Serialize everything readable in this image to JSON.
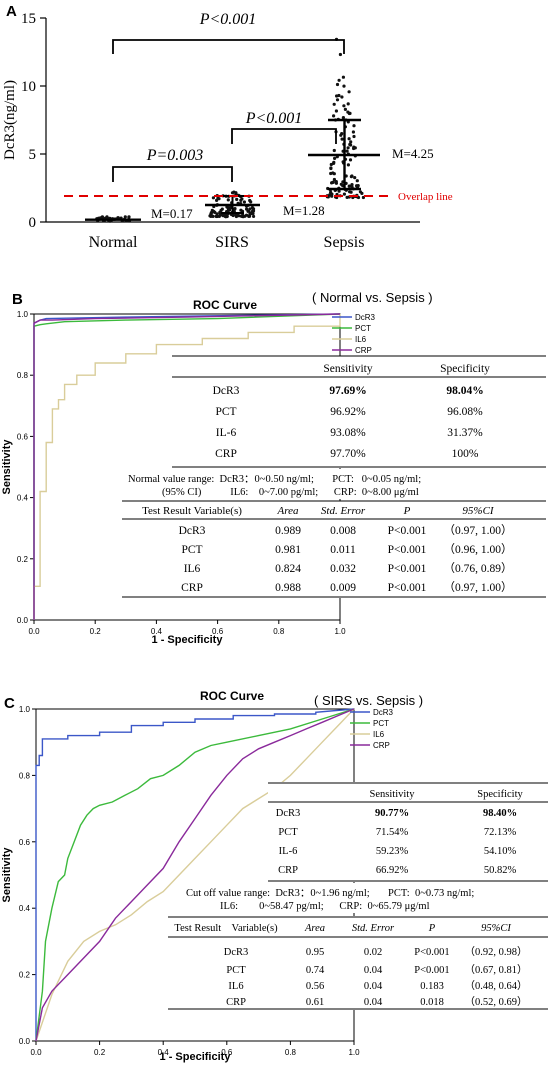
{
  "colors": {
    "DcR3": "#3b57c8",
    "PCT": "#3cba3c",
    "IL6": "#d9cd9a",
    "CRP": "#8a2a9b",
    "overlap": "#e00000"
  },
  "panelA": {
    "label": "A",
    "ylabel": "DcR3(ng/ml)",
    "yticks": [
      "0",
      "5",
      "10",
      "15"
    ],
    "categories": [
      "Normal",
      "SIRS",
      "Sepsis"
    ],
    "medians": [
      "M=0.17",
      "M=1.28",
      "M=4.25"
    ],
    "p_top": "P<0.001",
    "p_mid": "P<0.001",
    "p_low": "P=0.003",
    "overlap_label": "Overlap line"
  },
  "panelB": {
    "label": "B",
    "title": "ROC Curve",
    "subtitle": "( Normal vs. Sepsis )",
    "ylabel": "Sensitivity",
    "xlabel": "1 - Specificity",
    "ticks": [
      "0.0",
      "0.2",
      "0.4",
      "0.6",
      "0.8",
      "1.0"
    ],
    "legend": [
      "DcR3",
      "PCT",
      "IL6",
      "CRP"
    ],
    "sens_table": {
      "headers": [
        "",
        "Sensitivity",
        "Specificity"
      ],
      "rows": [
        [
          "DcR3",
          "97.69%",
          "98.04%"
        ],
        [
          "PCT",
          "96.92%",
          "96.08%"
        ],
        [
          "IL-6",
          "93.08%",
          "31.37%"
        ],
        [
          "CRP",
          "97.70%",
          "100%"
        ]
      ]
    },
    "range1": "Normal value range:  DcR3：0~0.50 ng/ml;       PCT:   0~0.05 ng/ml;",
    "range2": "(95% CI)           IL6:    0~7.00 pg/ml;      CRP:  0~8.00 μg/ml",
    "stat_table": {
      "headers": [
        "Test Result Variable(s)",
        "Area",
        "Std. Error",
        "P",
        "95%CI"
      ],
      "rows": [
        [
          "DcR3",
          "0.989",
          "0.008",
          "P<0.001",
          "（0.97, 1.00）"
        ],
        [
          "PCT",
          "0.981",
          "0.011",
          "P<0.001",
          "（0.96, 1.00）"
        ],
        [
          "IL6",
          "0.824",
          "0.032",
          "P<0.001",
          "（0.76, 0.89）"
        ],
        [
          "CRP",
          "0.988",
          "0.009",
          "P<0.001",
          "（0.97, 1.00）"
        ]
      ]
    }
  },
  "panelC": {
    "label": "C",
    "title": "ROC Curve",
    "subtitle": "( SIRS vs. Sepsis )",
    "ylabel": "Sensitivity",
    "xlabel": "1 - Specificity",
    "ticks": [
      "0.0",
      "0.2",
      "0.4",
      "0.6",
      "0.8",
      "1.0"
    ],
    "legend": [
      "DcR3",
      "PCT",
      "IL6",
      "CRP"
    ],
    "sens_table": {
      "headers": [
        "",
        "Sensitivity",
        "Specificity"
      ],
      "rows": [
        [
          "DcR3",
          "90.77%",
          "98.40%"
        ],
        [
          "PCT",
          "71.54%",
          "72.13%"
        ],
        [
          "IL-6",
          "59.23%",
          "54.10%"
        ],
        [
          "CRP",
          "66.92%",
          "50.82%"
        ]
      ]
    },
    "range1": "Cut off value range:  DcR3：0~1.96 ng/ml;       PCT:  0~0.73 ng/ml;",
    "range2": "IL6:        0~58.47 pg/ml;      CRP:  0~65.79 μg/ml",
    "stat_table": {
      "headers": [
        "Test Result    Variable(s)",
        "Area",
        "Std. Error",
        "P",
        "95%CI"
      ],
      "rows": [
        [
          "DcR3",
          "0.95",
          "0.02",
          "P<0.001",
          "（0.92, 0.98）"
        ],
        [
          "PCT",
          "0.74",
          "0.04",
          "P<0.001",
          "（0.67, 0.81）"
        ],
        [
          "IL6",
          "0.56",
          "0.04",
          "0.183",
          "（0.48, 0.64）"
        ],
        [
          "CRP",
          "0.61",
          "0.04",
          "0.018",
          "（0.52, 0.69）"
        ]
      ]
    }
  },
  "chart_data": [
    {
      "type": "scatter",
      "ylabel": "DcR3(ng/ml)",
      "ylim": [
        0,
        15
      ],
      "categories": [
        "Normal",
        "SIRS",
        "Sepsis"
      ],
      "medians": [
        0.17,
        1.28,
        4.25
      ],
      "iqr": [
        [
          0.1,
          0.3
        ],
        [
          0.7,
          1.9
        ],
        [
          2.5,
          7.6
        ]
      ],
      "overlap_line": 1.96,
      "annotations": [
        "P<0.001",
        "P<0.001",
        "P=0.003"
      ]
    },
    {
      "type": "line",
      "title": "ROC Curve",
      "xlabel": "1 - Specificity",
      "ylabel": "Sensitivity",
      "xlim": [
        0,
        1
      ],
      "ylim": [
        0,
        1
      ],
      "series": [
        {
          "name": "DcR3",
          "x": [
            0,
            0,
            0.02,
            0.04,
            0.3,
            1.0
          ],
          "y": [
            0,
            0.97,
            0.98,
            0.985,
            0.99,
            1.0
          ]
        },
        {
          "name": "PCT",
          "x": [
            0,
            0,
            0.02,
            0.04,
            0.1,
            0.3,
            0.6,
            1.0
          ],
          "y": [
            0,
            0.96,
            0.965,
            0.968,
            0.975,
            0.98,
            0.985,
            1.0
          ]
        },
        {
          "name": "IL6",
          "x": [
            0,
            0,
            0.02,
            0.02,
            0.04,
            0.04,
            0.06,
            0.06,
            0.08,
            0.08,
            0.1,
            0.1,
            0.14,
            0.14,
            0.2,
            0.2,
            0.3,
            0.3,
            0.4,
            0.4,
            0.55,
            0.55,
            0.7,
            0.7,
            0.85,
            0.85,
            1.0,
            1.0
          ],
          "y": [
            0,
            0.11,
            0.11,
            0.42,
            0.42,
            0.58,
            0.58,
            0.69,
            0.69,
            0.72,
            0.72,
            0.77,
            0.77,
            0.8,
            0.8,
            0.84,
            0.84,
            0.87,
            0.87,
            0.9,
            0.9,
            0.92,
            0.92,
            0.94,
            0.94,
            0.96,
            0.96,
            1.0
          ]
        },
        {
          "name": "CRP",
          "x": [
            0,
            0,
            0.02,
            0.06,
            0.2,
            0.5,
            1.0
          ],
          "y": [
            0,
            0.97,
            0.98,
            0.98,
            0.985,
            0.99,
            1.0
          ]
        }
      ]
    },
    {
      "type": "line",
      "title": "ROC Curve",
      "xlabel": "1 - Specificity",
      "ylabel": "Sensitivity",
      "xlim": [
        0,
        1
      ],
      "ylim": [
        0,
        1
      ],
      "series": [
        {
          "name": "DcR3",
          "x": [
            0,
            0,
            0.01,
            0.01,
            0.02,
            0.02,
            0.1,
            0.1,
            0.2,
            0.2,
            0.3,
            0.3,
            0.4,
            0.4,
            0.5,
            0.5,
            0.62,
            0.62,
            0.75,
            0.75,
            0.88,
            0.88,
            1.0
          ],
          "y": [
            0,
            0.83,
            0.83,
            0.86,
            0.86,
            0.91,
            0.91,
            0.92,
            0.92,
            0.93,
            0.93,
            0.95,
            0.95,
            0.96,
            0.96,
            0.97,
            0.97,
            0.98,
            0.98,
            0.985,
            0.985,
            0.99,
            1.0
          ]
        },
        {
          "name": "PCT",
          "x": [
            0,
            0.02,
            0.03,
            0.05,
            0.07,
            0.09,
            0.1,
            0.12,
            0.14,
            0.16,
            0.18,
            0.2,
            0.24,
            0.28,
            0.32,
            0.36,
            0.4,
            0.45,
            0.5,
            0.55,
            0.6,
            0.7,
            0.8,
            0.9,
            1.0
          ],
          "y": [
            0,
            0.15,
            0.3,
            0.4,
            0.48,
            0.5,
            0.55,
            0.6,
            0.65,
            0.68,
            0.7,
            0.71,
            0.72,
            0.74,
            0.76,
            0.79,
            0.8,
            0.83,
            0.87,
            0.89,
            0.9,
            0.92,
            0.94,
            0.97,
            1.0
          ]
        },
        {
          "name": "IL6",
          "x": [
            0,
            0.05,
            0.1,
            0.15,
            0.2,
            0.25,
            0.3,
            0.35,
            0.4,
            0.45,
            0.5,
            0.55,
            0.6,
            0.65,
            0.7,
            0.75,
            0.8,
            0.85,
            0.9,
            0.95,
            1.0
          ],
          "y": [
            0,
            0.14,
            0.24,
            0.3,
            0.33,
            0.35,
            0.38,
            0.42,
            0.45,
            0.5,
            0.55,
            0.6,
            0.65,
            0.7,
            0.73,
            0.76,
            0.8,
            0.85,
            0.9,
            0.95,
            1.0
          ]
        },
        {
          "name": "CRP",
          "x": [
            0,
            0.02,
            0.05,
            0.1,
            0.15,
            0.2,
            0.25,
            0.3,
            0.35,
            0.4,
            0.45,
            0.5,
            0.55,
            0.6,
            0.65,
            0.7,
            0.75,
            0.8,
            0.85,
            0.9,
            0.95,
            1.0
          ],
          "y": [
            0,
            0.1,
            0.15,
            0.2,
            0.25,
            0.3,
            0.37,
            0.42,
            0.47,
            0.52,
            0.6,
            0.67,
            0.74,
            0.8,
            0.85,
            0.88,
            0.9,
            0.92,
            0.94,
            0.96,
            0.98,
            1.0
          ]
        }
      ]
    }
  ]
}
